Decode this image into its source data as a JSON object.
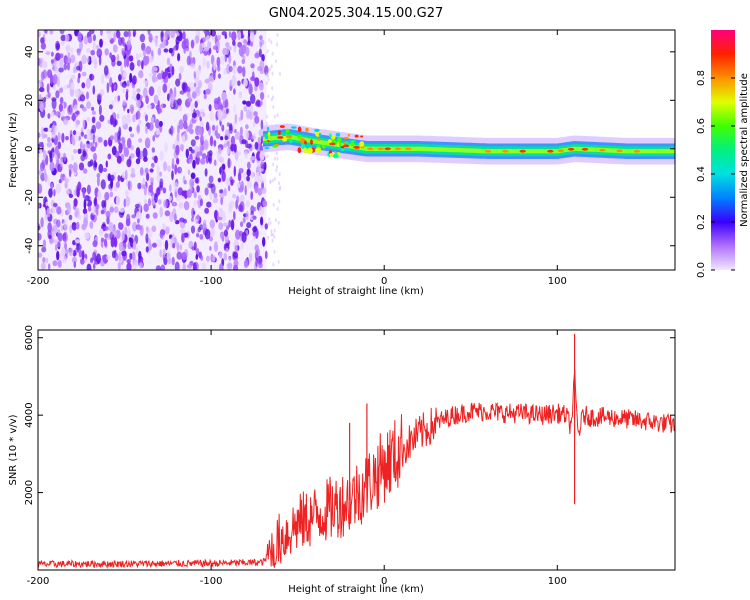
{
  "title": "GN04.2025.304.15.00.G27",
  "chart_data": [
    {
      "type": "heatmap",
      "title": "GN04.2025.304.15.00.G27",
      "xlabel": "Height of straight line (km)",
      "ylabel": "Frequency (Hz)",
      "xlim": [
        -200,
        168
      ],
      "ylim": [
        -50,
        49
      ],
      "xticks": [
        -200,
        -100,
        0,
        100
      ],
      "yticks": [
        -40,
        -20,
        0,
        20,
        40
      ],
      "colorbar": {
        "label": "Normalized spectral amplitude",
        "range": [
          0,
          1
        ],
        "ticks": [
          0.0,
          0.2,
          0.4,
          0.6,
          0.8
        ]
      },
      "features": {
        "noise_region_x": [
          -200,
          -68
        ],
        "signal_start_x": -70,
        "signal_trace_freq": [
          [
            -70,
            4
          ],
          [
            -55,
            5
          ],
          [
            -40,
            3
          ],
          [
            -30,
            2
          ],
          [
            -10,
            0
          ],
          [
            20,
            0
          ],
          [
            60,
            -1
          ],
          [
            100,
            -1
          ],
          [
            110,
            0
          ],
          [
            140,
            -1
          ],
          [
            168,
            -1
          ]
        ]
      }
    },
    {
      "type": "line",
      "title": "",
      "xlabel": "Height of straight line (km)",
      "ylabel": "SNR (10 * v/v)",
      "xlim": [
        -200,
        168
      ],
      "ylim": [
        0,
        6200
      ],
      "xticks": [
        -200,
        -100,
        0,
        100
      ],
      "yticks": [
        2000,
        4000,
        6000
      ],
      "series": [
        {
          "name": "SNR",
          "color": "#ee2222",
          "x": [
            -200,
            -150,
            -100,
            -70,
            -65,
            -60,
            -50,
            -40,
            -30,
            -20,
            -10,
            0,
            10,
            20,
            30,
            40,
            50,
            60,
            70,
            80,
            90,
            100,
            105,
            108,
            110,
            112,
            115,
            120,
            130,
            140,
            150,
            160,
            168
          ],
          "y": [
            150,
            160,
            170,
            200,
            500,
            800,
            1200,
            1400,
            1600,
            1800,
            2200,
            2700,
            3100,
            3500,
            3800,
            4000,
            4100,
            4100,
            4050,
            4050,
            4000,
            4050,
            4000,
            3700,
            5000,
            3500,
            4000,
            3950,
            3950,
            3900,
            3850,
            3800,
            3750
          ]
        }
      ],
      "spikes": [
        [
          -20,
          3800
        ],
        [
          -10,
          4300
        ],
        [
          110,
          6100
        ],
        [
          110,
          1700
        ]
      ]
    }
  ]
}
